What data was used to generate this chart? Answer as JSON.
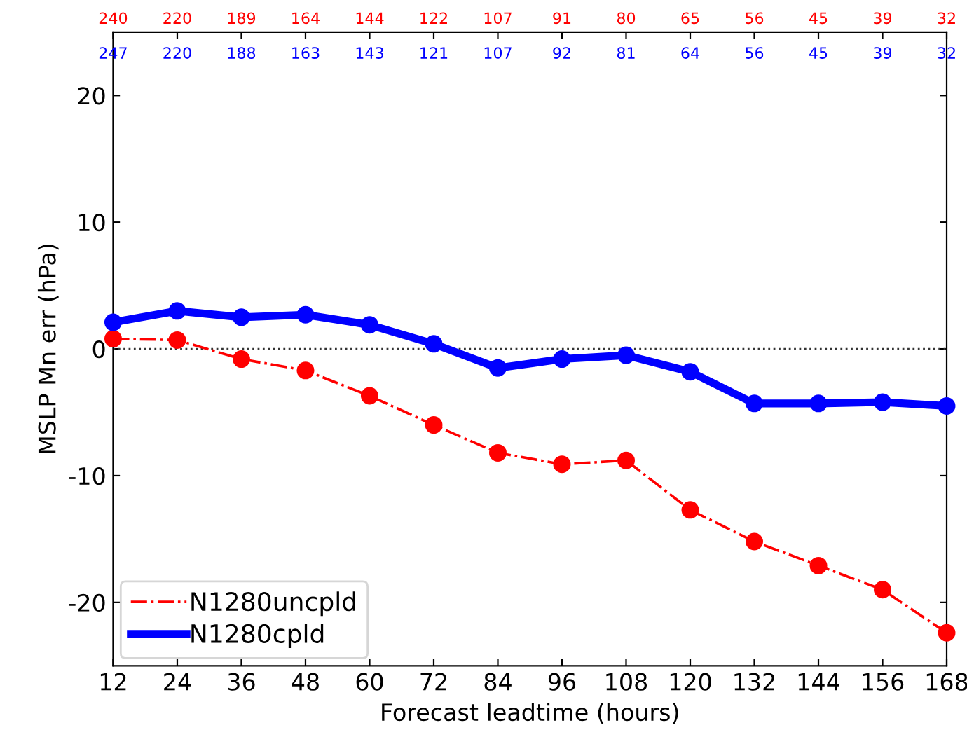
{
  "chart_data": {
    "type": "line",
    "xlabel": "Forecast leadtime (hours)",
    "ylabel": "MSLP Mn err (hPa)",
    "x": [
      12,
      24,
      36,
      48,
      60,
      72,
      84,
      96,
      108,
      120,
      132,
      144,
      156,
      168
    ],
    "series": [
      {
        "name": "N1280uncpld",
        "color": "#ff0000",
        "line_style": "dashdot",
        "values": [
          0.8,
          0.7,
          -0.8,
          -1.7,
          -3.7,
          -6.0,
          -8.2,
          -9.1,
          -8.8,
          -12.7,
          -15.2,
          -17.1,
          -19.0,
          -22.4
        ]
      },
      {
        "name": "N1280cpld",
        "color": "#0000ff",
        "line_style": "solid",
        "values": [
          2.1,
          3.0,
          2.5,
          2.7,
          1.9,
          0.4,
          -1.5,
          -0.8,
          -0.5,
          -1.8,
          -4.3,
          -4.3,
          -4.2,
          -4.5
        ]
      }
    ],
    "marker": "circle",
    "xlim": [
      12,
      168
    ],
    "xticks": [
      12,
      24,
      36,
      48,
      60,
      72,
      84,
      96,
      108,
      120,
      132,
      144,
      156,
      168
    ],
    "ylim": [
      -25,
      25
    ],
    "yticks": [
      -20,
      -10,
      0,
      10,
      20
    ],
    "annotations": [
      "240",
      "220",
      "189",
      "164",
      "144",
      "122",
      "107",
      "91",
      "80",
      "65",
      "56",
      "45",
      "39",
      "32",
      "247",
      "220",
      "188",
      "163",
      "143",
      "121",
      "107",
      "92",
      "81",
      "64",
      "56",
      "45",
      "39",
      "32"
    ],
    "ref_lines": [
      {
        "axis": "y",
        "value": 0,
        "color": "#333333",
        "line_style": "dotted"
      }
    ],
    "grid": false,
    "legend": "bottom left"
  }
}
